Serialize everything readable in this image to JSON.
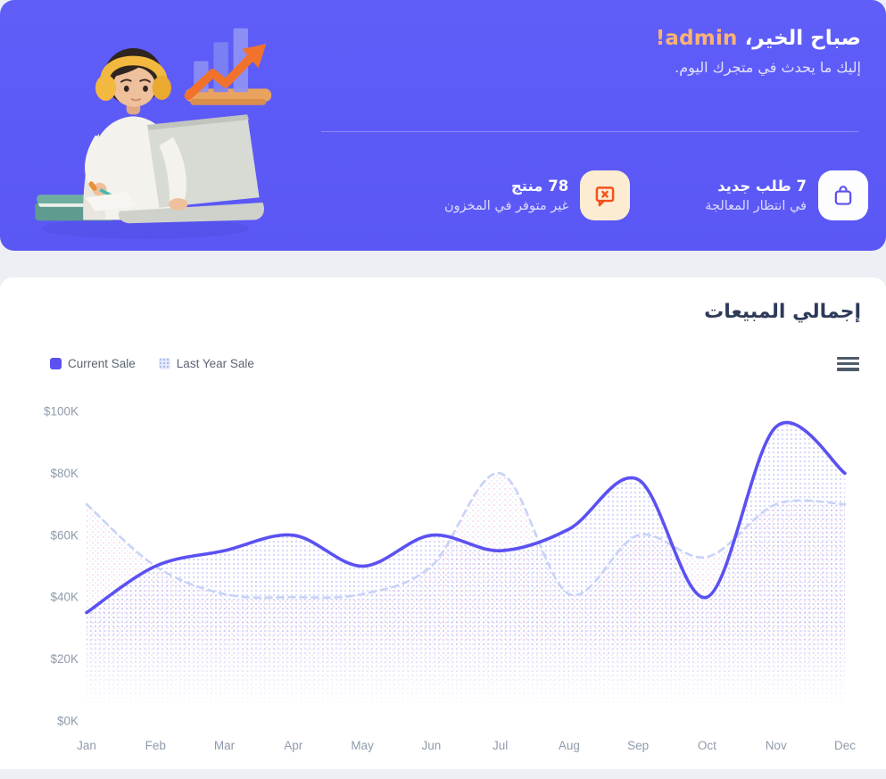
{
  "banner": {
    "greeting_prefix": "صباح الخير، ",
    "greeting_name": "admin!",
    "subtitle": "إليك ما يحدث في متجرك اليوم.",
    "stats": [
      {
        "icon": "shopping-bag-icon",
        "value_line": "7 طلب جديد",
        "caption": "في انتظار المعالجة"
      },
      {
        "icon": "message-x-icon",
        "value_line": "78 منتج",
        "caption": "غير متوفر في المخزون"
      }
    ],
    "illustration": "person-with-laptop-and-growth-chart",
    "colors": {
      "banner_bg": "#5c5af7",
      "accent_orange": "#fcb274",
      "icon_indigo": "#5a51f0",
      "icon_orange": "#f4511e"
    }
  },
  "sales_section": {
    "title": "إجمالي المبيعات",
    "toolbar_icon": "menu-icon"
  },
  "chart_data": {
    "type": "area",
    "title": "إجمالي المبيعات",
    "x": [
      "Jan",
      "Feb",
      "Mar",
      "Apr",
      "May",
      "Jun",
      "Jul",
      "Aug",
      "Sep",
      "Oct",
      "Nov",
      "Dec"
    ],
    "series": [
      {
        "name": "Current Sale",
        "values": [
          35,
          50,
          55,
          60,
          50,
          60,
          55,
          62,
          78,
          40,
          95,
          80
        ],
        "color": "#5b51f1",
        "style": "solid"
      },
      {
        "name": "Last Year Sale",
        "values": [
          70,
          50,
          41,
          40,
          41,
          50,
          80,
          41,
          60,
          53,
          70,
          70
        ],
        "color": "#c7d3f7",
        "style": "dashed"
      }
    ],
    "ytick_values": [
      0,
      20,
      40,
      60,
      80,
      100
    ],
    "ytick_labels": [
      "$0K",
      "$20K",
      "$40K",
      "$60K",
      "$80K",
      "$100K"
    ],
    "ylim": [
      0,
      100
    ],
    "unit": "$K",
    "grid": false,
    "legend_position": "top-left"
  }
}
